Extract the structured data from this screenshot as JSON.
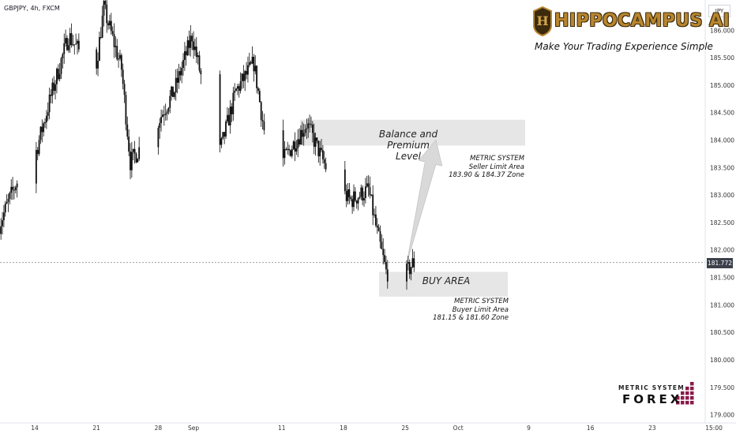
{
  "header": {
    "symbol": "GBPJPY, 4h, FXCM",
    "currency": "JPY"
  },
  "brand": {
    "title": "HIPPOCAMPUS AI",
    "tagline": "Make Your Trading Experience Simple",
    "badge_letter": "H"
  },
  "logo": {
    "top": "METRIC SYSTEM",
    "main": "FOREX"
  },
  "current_price": "181.772",
  "colors": {
    "candle": "#0d0d0d",
    "zone_fill": "#e6e6e6",
    "arrow_fill": "#d9d9d9",
    "price_line": "#9aa0a8",
    "brand_gold": "#b8862f"
  },
  "annotations": {
    "seller_zone": {
      "title": "Balance and Premium Level",
      "line1": "Balance and Premium",
      "line2": "Level",
      "system": "METRIC SYSTEM",
      "area": "Seller Limit Area",
      "zone": "183.90 & 184.37 Zone"
    },
    "buyer_zone": {
      "title": "BUY AREA",
      "system": "METRIC SYSTEM",
      "area": "Buyer Limit Area",
      "zone": "181.15 & 181.60 Zone"
    }
  },
  "chart_data": {
    "type": "candlestick",
    "title": "GBPJPY, 4h, FXCM",
    "y_axis": {
      "unit": "JPY",
      "range": [
        178.85,
        186.55
      ],
      "ticks": [
        "179.000",
        "179.500",
        "180.000",
        "180.500",
        "181.000",
        "181.500",
        "182.000",
        "182.500",
        "183.000",
        "183.500",
        "184.000",
        "184.500",
        "185.000",
        "185.500",
        "186.000"
      ],
      "side": "right"
    },
    "x_axis": {
      "labels": [
        "14",
        "21",
        "28",
        "Sep",
        "11",
        "18",
        "25",
        "Oct",
        "9",
        "16",
        "23",
        "15:00"
      ]
    },
    "zones": [
      {
        "name": "Seller Limit Area",
        "from": 183.9,
        "to": 184.37
      },
      {
        "name": "Buyer Limit Area",
        "from": 181.15,
        "to": 181.6
      }
    ],
    "current_price": 181.772,
    "grid": false,
    "close_path_approx": [
      [
        "Aug 10",
        182.4
      ],
      [
        "Aug 12",
        183.2
      ],
      [
        "Aug 14",
        183.6
      ],
      [
        "Aug 16",
        184.8
      ],
      [
        "Aug 18",
        185.9
      ],
      [
        "Aug 21",
        185.2
      ],
      [
        "Aug 22",
        186.4
      ],
      [
        "Aug 24",
        185.3
      ],
      [
        "Aug 25",
        183.6
      ],
      [
        "Aug 28",
        184.3
      ],
      [
        "Aug 30",
        184.9
      ],
      [
        "Sep 1",
        185.9
      ],
      [
        "Sep 4",
        183.7
      ],
      [
        "Sep 6",
        184.9
      ],
      [
        "Sep 8",
        185.4
      ],
      [
        "Sep 10",
        183.3
      ],
      [
        "Sep 12",
        183.8
      ],
      [
        "Sep 14",
        184.3
      ],
      [
        "Sep 17",
        183.2
      ],
      [
        "Sep 19",
        182.9
      ],
      [
        "Sep 21",
        183.1
      ],
      [
        "Sep 22",
        182.3
      ],
      [
        "Sep 23",
        181.6
      ],
      [
        "Sep 25",
        181.5
      ],
      [
        "Sep 26",
        181.75
      ]
    ]
  }
}
